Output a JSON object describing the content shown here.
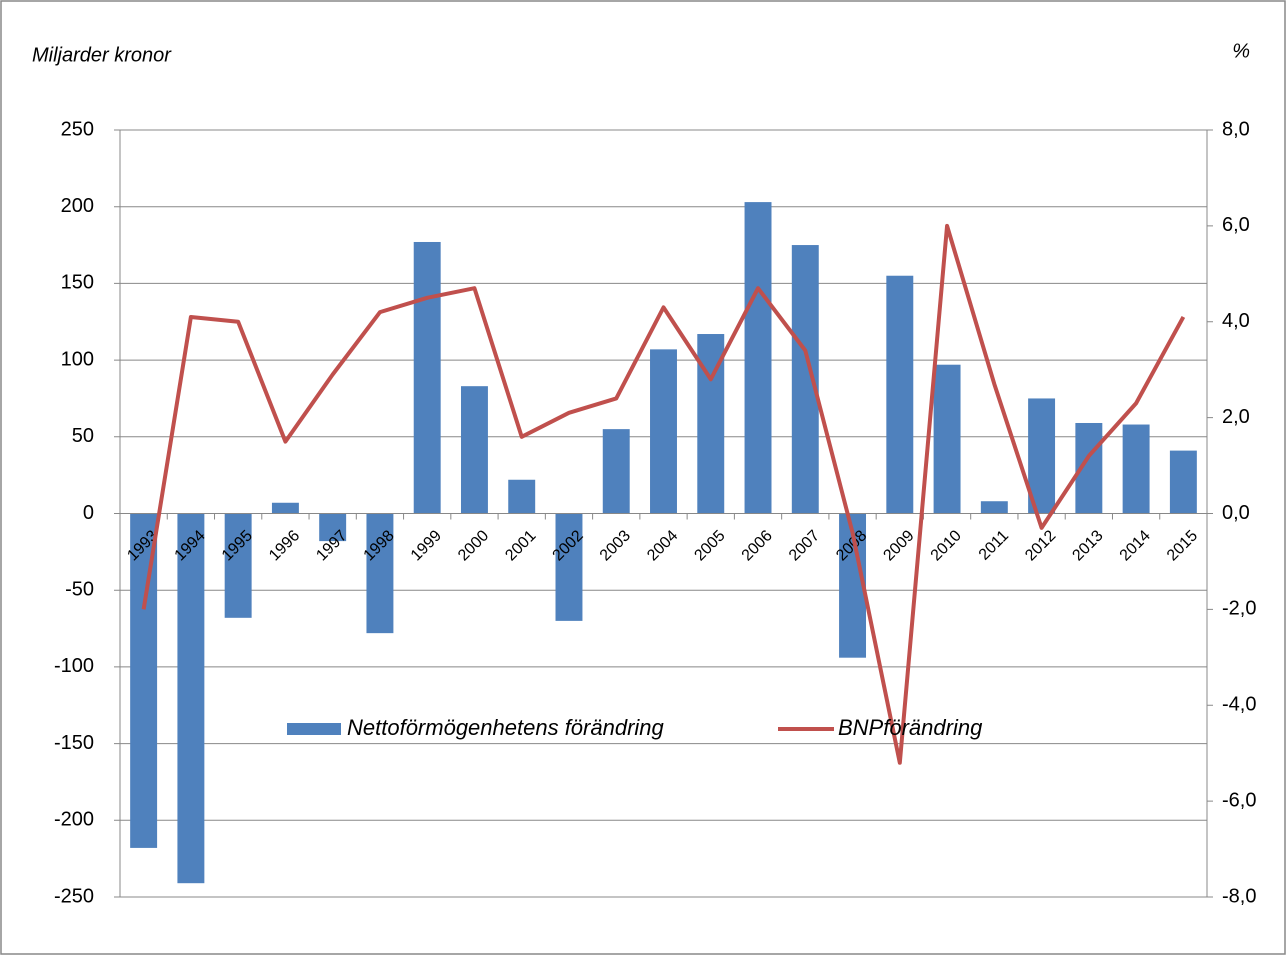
{
  "chart_data": {
    "type": "bar_line",
    "y_label": "Miljarder kronor",
    "y2_label": "%",
    "categories": [
      "1993",
      "1994",
      "1995",
      "1996",
      "1997",
      "1998",
      "1999",
      "2000",
      "2001",
      "2002",
      "2003",
      "2004",
      "2005",
      "2006",
      "2007",
      "2008",
      "2009",
      "2010",
      "2011",
      "2012",
      "2013",
      "2014",
      "2015"
    ],
    "series": [
      {
        "name": "Nettoförmögenhetens förändring",
        "type": "bar",
        "color": "#4f81bd",
        "values": [
          -218,
          -241,
          -68,
          7,
          -18,
          -78,
          177,
          83,
          22,
          -70,
          55,
          107,
          117,
          203,
          175,
          -94,
          155,
          97,
          8,
          75,
          59,
          58,
          41
        ]
      },
      {
        "name": "BNPförändring",
        "type": "line",
        "axis": "y2",
        "color": "#c0504d",
        "values": [
          -2.0,
          4.1,
          4.0,
          1.5,
          2.9,
          4.2,
          4.5,
          4.7,
          1.6,
          2.1,
          2.4,
          4.3,
          2.8,
          4.7,
          3.4,
          -0.4,
          -5.2,
          6.0,
          2.7,
          -0.3,
          1.2,
          2.3,
          4.1
        ]
      }
    ],
    "ylim": [
      -250,
      250
    ],
    "yticks": [
      -250,
      -200,
      -150,
      -100,
      -50,
      0,
      50,
      100,
      150,
      200,
      250
    ],
    "y2lim": [
      -8,
      8
    ],
    "y2ticks": [
      {
        "value": -8,
        "label": "-8,0"
      },
      {
        "value": -6,
        "label": "-6,0"
      },
      {
        "value": -4,
        "label": "-4,0"
      },
      {
        "value": -2,
        "label": "-2,0"
      },
      {
        "value": 0,
        "label": "0,0"
      },
      {
        "value": 2,
        "label": "2,0"
      },
      {
        "value": 4,
        "label": "4,0"
      },
      {
        "value": 6,
        "label": "6,0"
      },
      {
        "value": 8,
        "label": "8,0"
      }
    ],
    "grid": true,
    "legend": "bottom"
  }
}
